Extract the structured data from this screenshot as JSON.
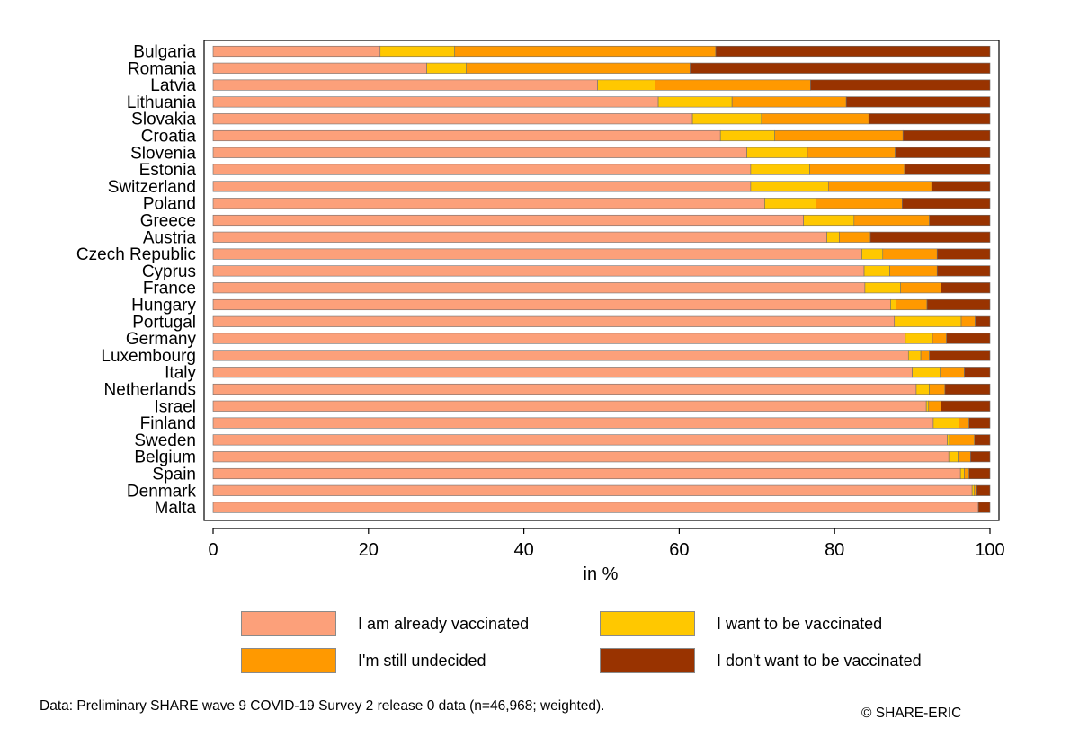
{
  "chart_data": {
    "type": "bar",
    "orientation": "horizontal",
    "stacked": true,
    "categories": [
      "Bulgaria",
      "Romania",
      "Latvia",
      "Lithuania",
      "Slovakia",
      "Croatia",
      "Slovenia",
      "Estonia",
      "Switzerland",
      "Poland",
      "Greece",
      "Austria",
      "Czech Republic",
      "Cyprus",
      "France",
      "Hungary",
      "Portugal",
      "Germany",
      "Luxembourg",
      "Italy",
      "Netherlands",
      "Israel",
      "Finland",
      "Sweden",
      "Belgium",
      "Spain",
      "Denmark",
      "Malta"
    ],
    "series": [
      {
        "name": "I am already vaccinated",
        "color": "#FCA07A",
        "values": [
          21.5,
          27.5,
          49.5,
          57.3,
          61.7,
          65.3,
          68.7,
          69.2,
          69.2,
          71.0,
          76.0,
          79.0,
          83.5,
          83.8,
          83.9,
          87.2,
          87.7,
          89.1,
          89.5,
          90.0,
          90.5,
          91.8,
          92.7,
          94.5,
          94.7,
          96.2,
          97.7,
          98.5
        ]
      },
      {
        "name": "I want to be vaccinated",
        "color": "#FFC800",
        "values": [
          9.6,
          5.1,
          7.4,
          9.5,
          8.9,
          7.0,
          7.8,
          7.6,
          10.0,
          6.6,
          6.5,
          1.6,
          2.7,
          3.3,
          4.6,
          0.7,
          8.6,
          3.5,
          1.6,
          3.6,
          1.7,
          0.3,
          3.3,
          0.3,
          1.2,
          0.5,
          0.3,
          0.0
        ]
      },
      {
        "name": "I'm still undecided",
        "color": "#FF9900",
        "values": [
          33.6,
          28.8,
          20.0,
          14.7,
          13.8,
          16.5,
          11.3,
          12.2,
          13.3,
          11.1,
          9.7,
          4.0,
          7.0,
          6.1,
          5.2,
          4.0,
          1.8,
          1.8,
          1.1,
          3.1,
          2.0,
          1.6,
          1.3,
          3.2,
          1.6,
          0.6,
          0.3,
          0.0
        ]
      },
      {
        "name": "I don't want to be vaccinated",
        "color": "#993300",
        "values": [
          35.3,
          38.6,
          23.1,
          18.5,
          15.6,
          11.2,
          12.2,
          11.0,
          7.5,
          11.3,
          7.8,
          15.4,
          6.8,
          6.8,
          6.3,
          8.1,
          1.9,
          5.6,
          7.8,
          3.3,
          5.8,
          6.3,
          2.7,
          2.0,
          2.5,
          2.7,
          1.7,
          1.5
        ]
      }
    ],
    "xlabel": "in %",
    "xlim": [
      0,
      100
    ],
    "xticks": [
      0,
      20,
      40,
      60,
      80,
      100
    ],
    "legend_position": "bottom",
    "grid": false
  },
  "legend": [
    {
      "label": "I am already vaccinated",
      "color": "#FCA07A"
    },
    {
      "label": "I want to be vaccinated",
      "color": "#FFC800"
    },
    {
      "label": "I'm still undecided",
      "color": "#FF9900"
    },
    {
      "label": "I don't want to be vaccinated",
      "color": "#993300"
    }
  ],
  "footer": {
    "source": "Data: Preliminary SHARE wave 9 COVID-19 Survey 2 release 0 data (n=46,968; weighted).",
    "copyright": "© SHARE-ERIC"
  }
}
